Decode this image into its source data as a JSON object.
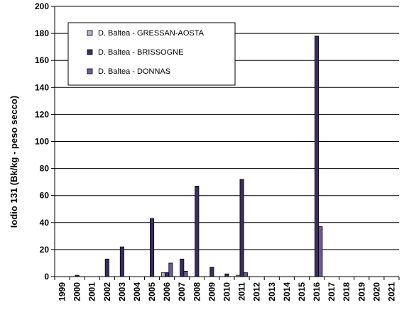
{
  "chart_data": {
    "type": "bar",
    "title": "",
    "xlabel": "",
    "ylabel": "Iodio 131  (Bk/kg - peso secco)",
    "ylim": [
      0,
      200
    ],
    "yticks": [
      0,
      20,
      40,
      60,
      80,
      100,
      120,
      140,
      160,
      180,
      200
    ],
    "grid": true,
    "legend_position": "top-left",
    "categories": [
      "1999",
      "2000",
      "2001",
      "2002",
      "2003",
      "2004",
      "2005",
      "2006",
      "2007",
      "2008",
      "2009",
      "2010",
      "2011",
      "2012",
      "2013",
      "2014",
      "2015",
      "2016",
      "2017",
      "2018",
      "2019",
      "2020",
      "2021"
    ],
    "series": [
      {
        "name": "D. Baltea - GRESSAN-AOSTA",
        "color": "#b0b0d0",
        "values": [
          0,
          0,
          0,
          0,
          0,
          0,
          0,
          3,
          0,
          0,
          0,
          0,
          1,
          0,
          0,
          0,
          0,
          0,
          0,
          0,
          0,
          0,
          0
        ]
      },
      {
        "name": "D. Baltea - BRISSOGNE",
        "color": "#3a2e5e",
        "values": [
          0,
          1,
          0,
          13,
          22,
          0,
          43,
          3,
          13,
          67,
          7,
          2,
          72,
          0,
          0,
          0,
          0,
          178,
          0,
          0,
          0,
          0,
          0
        ]
      },
      {
        "name": "D. Baltea - DONNAS",
        "color": "#6e5a96",
        "values": [
          0,
          0,
          0,
          0,
          0,
          0,
          0,
          10,
          4,
          0,
          0,
          0,
          3,
          0,
          0,
          0,
          0,
          37,
          0,
          0,
          0,
          0,
          0
        ]
      }
    ]
  }
}
